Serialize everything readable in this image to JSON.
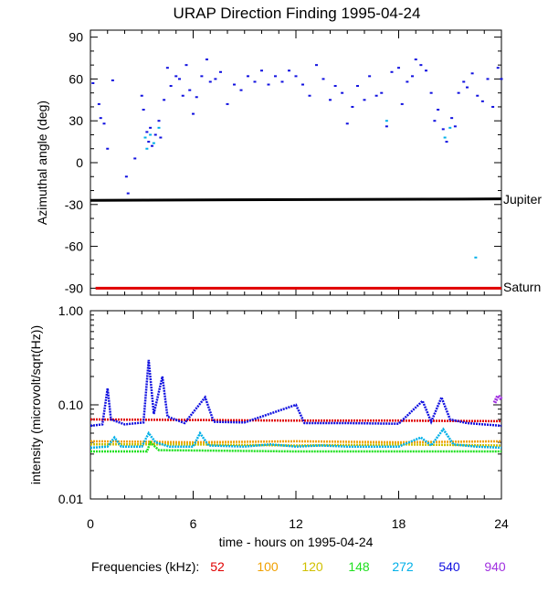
{
  "chart_data": [
    {
      "type": "scatter",
      "title": "URAP Direction Finding  1995-04-24",
      "xlabel": "",
      "ylabel": "Azimuthal angle (deg)",
      "xlim": [
        0,
        24
      ],
      "ylim": [
        -95,
        95
      ],
      "yticks": [
        90,
        60,
        30,
        0,
        -30,
        -60,
        -90
      ],
      "ytick_labels": [
        "90",
        "60",
        "30",
        "0",
        "-30",
        "-60",
        "-90"
      ],
      "reference_lines": [
        {
          "name": "Jupiter",
          "label": "Jupiter",
          "color": "#000000",
          "x": [
            0,
            24
          ],
          "y": [
            -27,
            -26
          ]
        },
        {
          "name": "Saturn",
          "label": "Saturn",
          "color": "#e00000",
          "x": [
            0.3,
            24
          ],
          "y": [
            -90,
            -90
          ]
        }
      ],
      "series": [
        {
          "name": "540 kHz",
          "color": "#1010e0",
          "points": [
            [
              0.15,
              57
            ],
            [
              0.5,
              42
            ],
            [
              0.6,
              32
            ],
            [
              0.8,
              28
            ],
            [
              1.0,
              10
            ],
            [
              1.3,
              59
            ],
            [
              2.1,
              -10
            ],
            [
              2.2,
              -22
            ],
            [
              2.6,
              3
            ],
            [
              3.0,
              48
            ],
            [
              3.1,
              38
            ],
            [
              3.3,
              22
            ],
            [
              3.4,
              15
            ],
            [
              3.5,
              25
            ],
            [
              3.6,
              12
            ],
            [
              3.8,
              20
            ],
            [
              4.0,
              30
            ],
            [
              4.1,
              18
            ],
            [
              4.3,
              45
            ],
            [
              4.5,
              68
            ],
            [
              4.7,
              55
            ],
            [
              5.0,
              62
            ],
            [
              5.2,
              60
            ],
            [
              5.4,
              48
            ],
            [
              5.6,
              70
            ],
            [
              5.8,
              52
            ],
            [
              6.0,
              35
            ],
            [
              6.2,
              47
            ],
            [
              6.5,
              62
            ],
            [
              6.8,
              74
            ],
            [
              7.0,
              58
            ],
            [
              7.3,
              60
            ],
            [
              7.6,
              65
            ],
            [
              8.0,
              42
            ],
            [
              8.4,
              56
            ],
            [
              8.8,
              52
            ],
            [
              9.2,
              62
            ],
            [
              9.6,
              58
            ],
            [
              10.0,
              66
            ],
            [
              10.4,
              56
            ],
            [
              10.8,
              62
            ],
            [
              11.2,
              58
            ],
            [
              11.6,
              66
            ],
            [
              12.0,
              62
            ],
            [
              12.4,
              56
            ],
            [
              12.8,
              48
            ],
            [
              13.2,
              70
            ],
            [
              13.6,
              60
            ],
            [
              14.0,
              45
            ],
            [
              14.3,
              55
            ],
            [
              14.7,
              50
            ],
            [
              15.0,
              28
            ],
            [
              15.3,
              40
            ],
            [
              15.6,
              55
            ],
            [
              16.0,
              45
            ],
            [
              16.3,
              62
            ],
            [
              16.7,
              48
            ],
            [
              17.0,
              50
            ],
            [
              17.3,
              26
            ],
            [
              17.6,
              65
            ],
            [
              18.0,
              68
            ],
            [
              18.2,
              42
            ],
            [
              18.5,
              58
            ],
            [
              18.8,
              62
            ],
            [
              19.0,
              74
            ],
            [
              19.3,
              70
            ],
            [
              19.6,
              66
            ],
            [
              19.9,
              50
            ],
            [
              20.1,
              30
            ],
            [
              20.3,
              38
            ],
            [
              20.6,
              24
            ],
            [
              20.8,
              15
            ],
            [
              21.1,
              32
            ],
            [
              21.3,
              26
            ],
            [
              21.5,
              50
            ],
            [
              21.8,
              58
            ],
            [
              22.0,
              54
            ],
            [
              22.3,
              64
            ],
            [
              22.6,
              48
            ],
            [
              22.9,
              44
            ],
            [
              23.2,
              60
            ],
            [
              23.5,
              40
            ],
            [
              23.8,
              68
            ],
            [
              24.0,
              60
            ]
          ]
        },
        {
          "name": "272 kHz",
          "color": "#00b0e8",
          "points": [
            [
              3.2,
              18
            ],
            [
              3.3,
              10
            ],
            [
              3.5,
              20
            ],
            [
              3.7,
              14
            ],
            [
              4.0,
              25
            ],
            [
              17.3,
              30
            ],
            [
              20.7,
              18
            ],
            [
              21.0,
              25
            ],
            [
              22.5,
              -68
            ]
          ]
        }
      ]
    },
    {
      "type": "line",
      "title": "",
      "xlabel": "time - hours on 1995-04-24",
      "ylabel": "intensity (microvolt/sqrt(Hz))",
      "xlim": [
        0,
        24
      ],
      "xticks": [
        0,
        6,
        12,
        18,
        24
      ],
      "xtick_labels": [
        "0",
        "6",
        "12",
        "18",
        "24"
      ],
      "yscale": "log",
      "ylim": [
        0.01,
        1.0
      ],
      "yticks": [
        1.0,
        0.1,
        0.01
      ],
      "ytick_labels": [
        "1.00",
        "0.10",
        "0.01"
      ],
      "legend_title": "Frequencies (kHz):",
      "legend_placement": "bottom",
      "series": [
        {
          "name": "52",
          "color": "#e00000",
          "points": [
            [
              0,
              0.07
            ],
            [
              6,
              0.069
            ],
            [
              12,
              0.068
            ],
            [
              18,
              0.068
            ],
            [
              24,
              0.067
            ]
          ]
        },
        {
          "name": "100",
          "color": "#f0a000",
          "points": [
            [
              0,
              0.041
            ],
            [
              6,
              0.04
            ],
            [
              12,
              0.041
            ],
            [
              18,
              0.04
            ],
            [
              24,
              0.041
            ]
          ]
        },
        {
          "name": "120",
          "color": "#d0c000",
          "points": [
            [
              0,
              0.038
            ],
            [
              6,
              0.038
            ],
            [
              12,
              0.037
            ],
            [
              18,
              0.038
            ],
            [
              24,
              0.037
            ]
          ]
        },
        {
          "name": "148",
          "color": "#20e020",
          "points": [
            [
              0,
              0.032
            ],
            [
              3.3,
              0.032
            ],
            [
              3.5,
              0.04
            ],
            [
              4.0,
              0.033
            ],
            [
              12,
              0.032
            ],
            [
              24,
              0.032
            ]
          ]
        },
        {
          "name": "272",
          "color": "#00b0e8",
          "points": [
            [
              0,
              0.035
            ],
            [
              1,
              0.036
            ],
            [
              1.4,
              0.045
            ],
            [
              1.8,
              0.036
            ],
            [
              3,
              0.036
            ],
            [
              3.4,
              0.05
            ],
            [
              3.8,
              0.04
            ],
            [
              4.6,
              0.036
            ],
            [
              6,
              0.036
            ],
            [
              6.4,
              0.05
            ],
            [
              6.9,
              0.037
            ],
            [
              9,
              0.036
            ],
            [
              10.5,
              0.038
            ],
            [
              12,
              0.036
            ],
            [
              13.5,
              0.037
            ],
            [
              15,
              0.036
            ],
            [
              18,
              0.036
            ],
            [
              19.3,
              0.045
            ],
            [
              19.9,
              0.037
            ],
            [
              20.6,
              0.055
            ],
            [
              21.2,
              0.038
            ],
            [
              22.5,
              0.036
            ],
            [
              24,
              0.035
            ]
          ]
        },
        {
          "name": "540",
          "color": "#1010e0",
          "points": [
            [
              0,
              0.06
            ],
            [
              0.7,
              0.062
            ],
            [
              1.0,
              0.15
            ],
            [
              1.2,
              0.07
            ],
            [
              2,
              0.062
            ],
            [
              3.1,
              0.065
            ],
            [
              3.4,
              0.3
            ],
            [
              3.7,
              0.08
            ],
            [
              4.2,
              0.2
            ],
            [
              4.5,
              0.075
            ],
            [
              5.5,
              0.064
            ],
            [
              6.7,
              0.12
            ],
            [
              7.2,
              0.066
            ],
            [
              9,
              0.065
            ],
            [
              12,
              0.1
            ],
            [
              12.5,
              0.064
            ],
            [
              15,
              0.064
            ],
            [
              18,
              0.063
            ],
            [
              19.4,
              0.11
            ],
            [
              19.9,
              0.066
            ],
            [
              20.5,
              0.12
            ],
            [
              21,
              0.07
            ],
            [
              22,
              0.064
            ],
            [
              24,
              0.06
            ]
          ]
        },
        {
          "name": "940",
          "color": "#a030e0",
          "points": [
            [
              23.6,
              0.105
            ],
            [
              23.8,
              0.125
            ],
            [
              24.0,
              0.115
            ]
          ]
        }
      ]
    }
  ],
  "legend": {
    "title": "Frequencies (kHz):",
    "items": [
      {
        "label": "52",
        "color": "#e00000"
      },
      {
        "label": "100",
        "color": "#f0a000"
      },
      {
        "label": "120",
        "color": "#d0c000"
      },
      {
        "label": "148",
        "color": "#20e020"
      },
      {
        "label": "272",
        "color": "#00b0e8"
      },
      {
        "label": "540",
        "color": "#1010e0"
      },
      {
        "label": "940",
        "color": "#a030e0"
      }
    ]
  }
}
